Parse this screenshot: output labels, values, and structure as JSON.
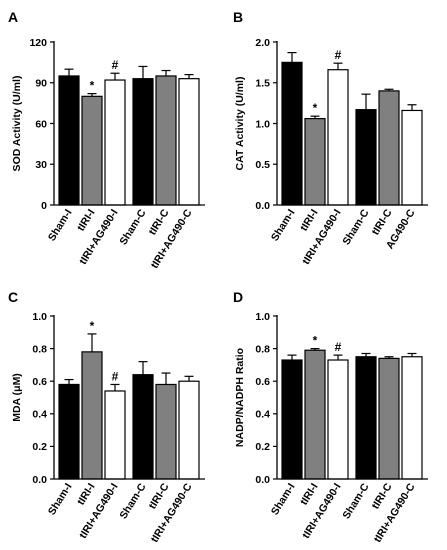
{
  "chart_data": [
    {
      "panel": "A",
      "type": "bar",
      "ylabel": "SOD Activity (U/ml)",
      "ylim": [
        0,
        120
      ],
      "yticks": [
        0,
        30,
        60,
        90,
        120
      ],
      "categories": [
        "Sham-I",
        "tIRI-I",
        "tIRI+AG490-I",
        "Sham-C",
        "tIRI-C",
        "tIRI+AG490-C"
      ],
      "values": [
        95,
        80,
        92,
        93,
        95,
        93
      ],
      "errors": [
        5,
        2,
        5,
        9,
        4,
        3
      ],
      "fills": [
        "#000000",
        "#808080",
        "#ffffff",
        "#000000",
        "#808080",
        "#ffffff"
      ],
      "significance": [
        "",
        "*",
        "#",
        "",
        "",
        ""
      ]
    },
    {
      "panel": "B",
      "type": "bar",
      "ylabel": "CAT Activity (U/ml)",
      "ylim": [
        0,
        2.0
      ],
      "yticks": [
        0,
        0.5,
        1.0,
        1.5,
        2.0
      ],
      "categories": [
        "Sham-I",
        "tIRI-I",
        "tIRI+AG490-I",
        "Sham-C",
        "tIRI-C",
        "AG490-C"
      ],
      "values": [
        1.75,
        1.06,
        1.66,
        1.17,
        1.4,
        1.16
      ],
      "errors": [
        0.12,
        0.03,
        0.08,
        0.19,
        0.02,
        0.07
      ],
      "fills": [
        "#000000",
        "#808080",
        "#ffffff",
        "#000000",
        "#808080",
        "#ffffff"
      ],
      "significance": [
        "",
        "*",
        "#",
        "",
        "",
        ""
      ]
    },
    {
      "panel": "C",
      "type": "bar",
      "ylabel": "MDA (μM)",
      "ylim": [
        0,
        1.0
      ],
      "yticks": [
        0,
        0.2,
        0.4,
        0.6,
        0.8,
        1.0
      ],
      "categories": [
        "Sham-I",
        "tIRI-I",
        "tIRI+AG490-I",
        "Sham-C",
        "tIRI-C",
        "tIRI+AG490-C"
      ],
      "values": [
        0.58,
        0.78,
        0.54,
        0.64,
        0.58,
        0.6
      ],
      "errors": [
        0.03,
        0.11,
        0.04,
        0.08,
        0.07,
        0.03
      ],
      "fills": [
        "#000000",
        "#808080",
        "#ffffff",
        "#000000",
        "#808080",
        "#ffffff"
      ],
      "significance": [
        "",
        "*",
        "#",
        "",
        "",
        ""
      ]
    },
    {
      "panel": "D",
      "type": "bar",
      "ylabel": "NADP/NADPH Ratio",
      "ylim": [
        0,
        1.0
      ],
      "yticks": [
        0,
        0.2,
        0.4,
        0.6,
        0.8,
        1.0
      ],
      "categories": [
        "Sham-I",
        "tIRI-I",
        "tIRI+AG490-I",
        "Sham-C",
        "tIRI-C",
        "tIRI+AG490-C"
      ],
      "values": [
        0.73,
        0.79,
        0.73,
        0.75,
        0.74,
        0.75
      ],
      "errors": [
        0.03,
        0.01,
        0.03,
        0.02,
        0.01,
        0.02
      ],
      "fills": [
        "#000000",
        "#808080",
        "#ffffff",
        "#000000",
        "#808080",
        "#ffffff"
      ],
      "significance": [
        "",
        "*",
        "#",
        "",
        "",
        ""
      ]
    }
  ]
}
